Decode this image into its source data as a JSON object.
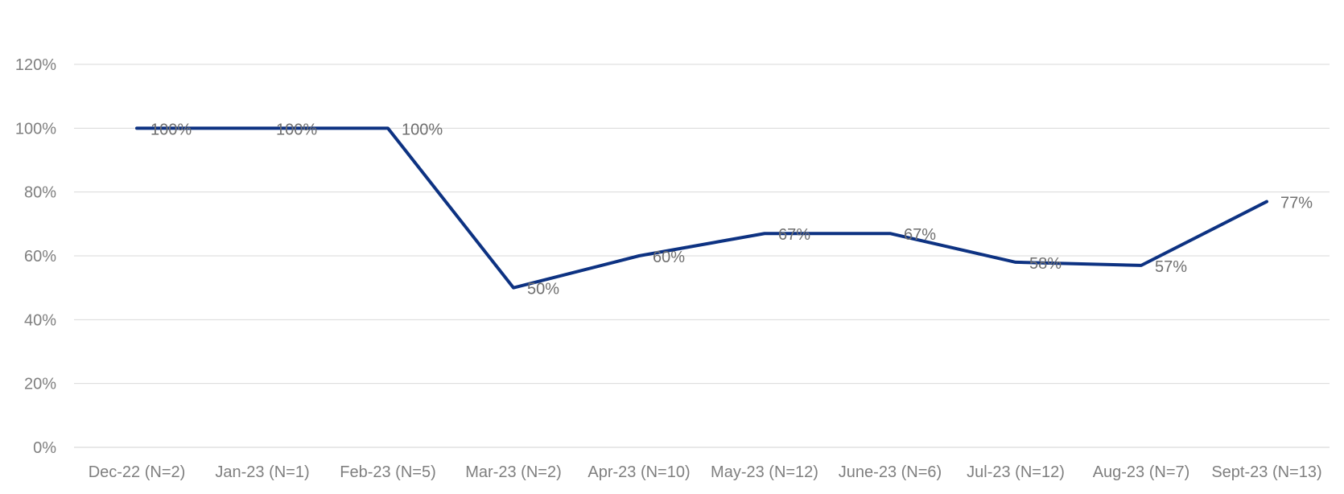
{
  "chart_data": {
    "type": "line",
    "categories": [
      "Dec-22 (N=2)",
      "Jan-23 (N=1)",
      "Feb-23 (N=5)",
      "Mar-23 (N=2)",
      "Apr-23 (N=10)",
      "May-23 (N=12)",
      "June-23 (N=6)",
      "Jul-23 (N=12)",
      "Aug-23 (N=7)",
      "Sept-23 (N=13)"
    ],
    "series": [
      {
        "values": [
          100,
          100,
          100,
          50,
          60,
          67,
          67,
          58,
          57,
          77
        ],
        "data_labels": [
          "100%",
          "100%",
          "100%",
          "50%",
          "60%",
          "67%",
          "67%",
          "58%",
          "57%",
          "77%"
        ],
        "color": "#0d3282"
      }
    ],
    "y_ticks": [
      0,
      20,
      40,
      60,
      80,
      100,
      120
    ],
    "y_tick_labels": [
      "0%",
      "20%",
      "40%",
      "60%",
      "80%",
      "100%",
      "120%"
    ],
    "ylim": [
      0,
      120
    ],
    "title": "",
    "xlabel": "",
    "ylabel": "",
    "grid": true,
    "legend": "none",
    "colors": {
      "gridline": "#d9d9d9",
      "tick_text": "#7f7f7f",
      "label_text": "#6f6f6f"
    }
  }
}
